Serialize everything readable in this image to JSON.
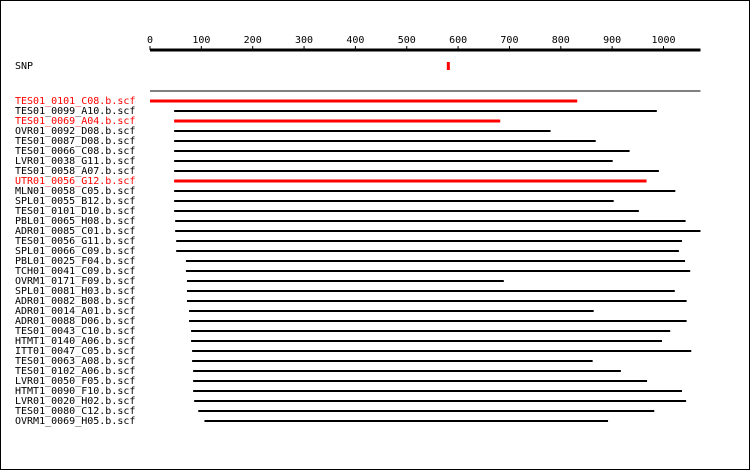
{
  "axis": {
    "ticks": [
      0,
      100,
      200,
      300,
      400,
      500,
      600,
      700,
      800,
      900,
      1000
    ],
    "range": [
      0,
      1072
    ]
  },
  "snp": {
    "label": "SNP",
    "position": 580,
    "color": "#ff0000"
  },
  "colors": {
    "highlight": "#ff0000",
    "normal": "#000000"
  },
  "reads": [
    {
      "name": "TES01_0101_C08.b.scf",
      "start": 0,
      "end": 832,
      "highlight": true
    },
    {
      "name": "TES01_0099_A10.b.scf",
      "start": 47,
      "end": 987,
      "highlight": false
    },
    {
      "name": "TES01_0069_A04.b.scf",
      "start": 47,
      "end": 682,
      "highlight": true
    },
    {
      "name": "OVR01_0092_D08.b.scf",
      "start": 47,
      "end": 780,
      "highlight": false
    },
    {
      "name": "TES01_0087_D08.b.scf",
      "start": 47,
      "end": 868,
      "highlight": false
    },
    {
      "name": "TES01_0066_C08.b.scf",
      "start": 47,
      "end": 934,
      "highlight": false
    },
    {
      "name": "LVR01_0038_G11.b.scf",
      "start": 47,
      "end": 901,
      "highlight": false
    },
    {
      "name": "TES01_0058_A07.b.scf",
      "start": 47,
      "end": 991,
      "highlight": false
    },
    {
      "name": "UTR01_0056_G12.b.scf",
      "start": 47,
      "end": 967,
      "highlight": true
    },
    {
      "name": "MLN01_0058_C05.b.scf",
      "start": 47,
      "end": 1023,
      "highlight": false
    },
    {
      "name": "SPL01_0055_B12.b.scf",
      "start": 47,
      "end": 903,
      "highlight": false
    },
    {
      "name": "TES01_0101_D10.b.scf",
      "start": 47,
      "end": 952,
      "highlight": false
    },
    {
      "name": "PBL01_0065_H08.b.scf",
      "start": 49,
      "end": 1043,
      "highlight": false
    },
    {
      "name": "ADR01_0085_C01.b.scf",
      "start": 49,
      "end": 1072,
      "highlight": false
    },
    {
      "name": "TES01_0056_G11.b.scf",
      "start": 51,
      "end": 1036,
      "highlight": false
    },
    {
      "name": "SPL01_0066_C09.b.scf",
      "start": 51,
      "end": 1030,
      "highlight": false
    },
    {
      "name": "PBL01_0025_F04.b.scf",
      "start": 70,
      "end": 1042,
      "highlight": false
    },
    {
      "name": "TCH01_0041_C09.b.scf",
      "start": 70,
      "end": 1052,
      "highlight": false
    },
    {
      "name": "OVRM1_0171_F09.b.scf",
      "start": 72,
      "end": 689,
      "highlight": false
    },
    {
      "name": "SPL01_0081_H03.b.scf",
      "start": 72,
      "end": 1022,
      "highlight": false
    },
    {
      "name": "ADR01_0082_B08.b.scf",
      "start": 72,
      "end": 1045,
      "highlight": false
    },
    {
      "name": "ADR01_0014_A01.b.scf",
      "start": 76,
      "end": 864,
      "highlight": false
    },
    {
      "name": "ADR01_0088_D06.b.scf",
      "start": 76,
      "end": 1045,
      "highlight": false
    },
    {
      "name": "TES01_0043_C10.b.scf",
      "start": 80,
      "end": 1013,
      "highlight": false
    },
    {
      "name": "HTMT1_0140_A06.b.scf",
      "start": 80,
      "end": 997,
      "highlight": false
    },
    {
      "name": "ITT01_0047_C05.b.scf",
      "start": 82,
      "end": 1054,
      "highlight": false
    },
    {
      "name": "TES01_0063_A08.b.scf",
      "start": 82,
      "end": 862,
      "highlight": false
    },
    {
      "name": "TES01_0102_A06.b.scf",
      "start": 84,
      "end": 917,
      "highlight": false
    },
    {
      "name": "LVR01_0050_F05.b.scf",
      "start": 84,
      "end": 968,
      "highlight": false
    },
    {
      "name": "HTMT1_0090_F10.b.scf",
      "start": 84,
      "end": 1036,
      "highlight": false
    },
    {
      "name": "LVR01_0020_H02.b.scf",
      "start": 86,
      "end": 1044,
      "highlight": false
    },
    {
      "name": "TES01_0080_C12.b.scf",
      "start": 94,
      "end": 982,
      "highlight": false
    },
    {
      "name": "OVRM1_0069_H05.b.scf",
      "start": 106,
      "end": 892,
      "highlight": false
    }
  ]
}
